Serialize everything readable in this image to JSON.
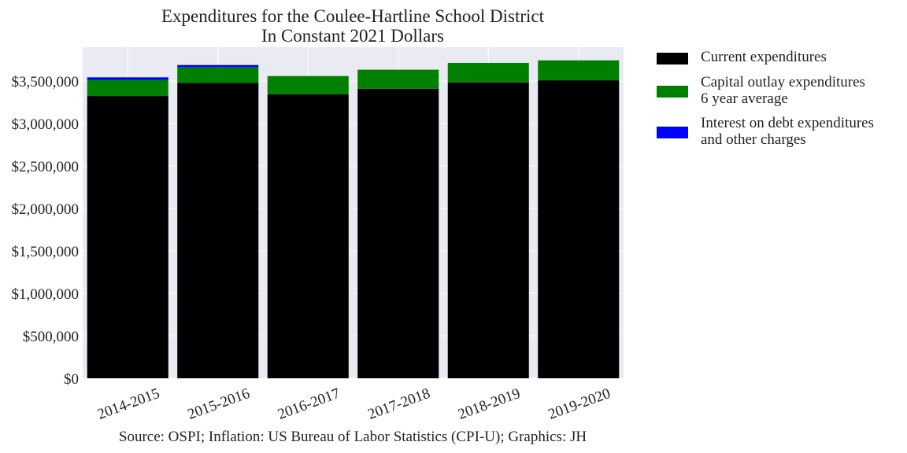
{
  "chart_data": {
    "type": "bar",
    "stacked": true,
    "title": "Expenditures for the Coulee-Hartline School District\nIn Constant 2021 Dollars",
    "xlabel": "",
    "ylabel": "",
    "categories": [
      "2014-2015",
      "2015-2016",
      "2016-2017",
      "2017-2018",
      "2018-2019",
      "2019-2020"
    ],
    "series": [
      {
        "name": "Current expenditures",
        "color": "#000000",
        "values": [
          3325000,
          3480000,
          3345000,
          3410000,
          3485000,
          3510000
        ]
      },
      {
        "name": "Capital outlay expenditures\n6 year average",
        "color": "#008000",
        "values": [
          190000,
          185000,
          215000,
          225000,
          230000,
          235000
        ]
      },
      {
        "name": "Interest on debt expenditures\nand other charges",
        "color": "#0000ff",
        "values": [
          30000,
          25000,
          0,
          0,
          0,
          0
        ]
      }
    ],
    "ylim": [
      0,
      3900000
    ],
    "yticks": [
      0,
      500000,
      1000000,
      1500000,
      2000000,
      2500000,
      3000000,
      3500000
    ],
    "ytick_labels": [
      "$0",
      "$500,000",
      "$1,000,000",
      "$1,500,000",
      "$2,000,000",
      "$2,500,000",
      "$3,000,000",
      "$3,500,000"
    ],
    "grid": true,
    "legend_position": "outside-right-top",
    "background": "#eaeaf2",
    "source": "Source: OSPI; Inflation: US Bureau of Labor Statistics (CPI-U); Graphics: JH"
  }
}
